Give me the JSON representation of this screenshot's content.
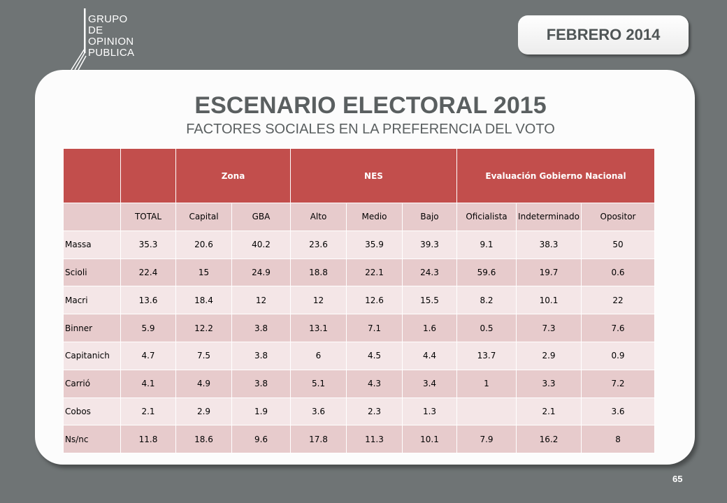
{
  "logo": {
    "lines": [
      "GRUPO",
      "DE",
      "OPINION",
      "PUBLICA"
    ]
  },
  "date": "FEBRERO 2014",
  "title": "ESCENARIO ELECTORAL 2015",
  "subtitle": "FACTORES SOCIALES EN LA PREFERENCIA DEL VOTO",
  "table": {
    "groups": [
      "Zona",
      "NES",
      "Evaluación Gobierno Nacional"
    ],
    "columns": [
      "TOTAL",
      "Capital",
      "GBA",
      "Alto",
      "Medio",
      "Bajo",
      "Oficialista",
      "Indeterminado",
      "Opositor"
    ],
    "rows": [
      {
        "label": "Massa",
        "values": [
          "35.3",
          "20.6",
          "40.2",
          "23.6",
          "35.9",
          "39.3",
          "9.1",
          "38.3",
          "50"
        ]
      },
      {
        "label": "Scioli",
        "values": [
          "22.4",
          "15",
          "24.9",
          "18.8",
          "22.1",
          "24.3",
          "59.6",
          "19.7",
          "0.6"
        ]
      },
      {
        "label": "Macri",
        "values": [
          "13.6",
          "18.4",
          "12",
          "12",
          "12.6",
          "15.5",
          "8.2",
          "10.1",
          "22"
        ]
      },
      {
        "label": "Binner",
        "values": [
          "5.9",
          "12.2",
          "3.8",
          "13.1",
          "7.1",
          "1.6",
          "0.5",
          "7.3",
          "7.6"
        ]
      },
      {
        "label": "Capitanich",
        "values": [
          "4.7",
          "7.5",
          "3.8",
          "6",
          "4.5",
          "4.4",
          "13.7",
          "2.9",
          "0.9"
        ]
      },
      {
        "label": "Carrió",
        "values": [
          "4.1",
          "4.9",
          "3.8",
          "5.1",
          "4.3",
          "3.4",
          "1",
          "3.3",
          "7.2"
        ]
      },
      {
        "label": "Cobos",
        "values": [
          "2.1",
          "2.9",
          "1.9",
          "3.6",
          "2.3",
          "1.3",
          "",
          "2.1",
          "3.6"
        ]
      },
      {
        "label": "Ns/nc",
        "values": [
          "11.8",
          "18.6",
          "9.6",
          "17.8",
          "11.3",
          "10.1",
          "7.9",
          "16.2",
          "8"
        ]
      }
    ]
  },
  "page_number": "65",
  "colors": {
    "header": "#c24e4c",
    "row_dark": "#e7cbcc",
    "row_light": "#f4e6e7",
    "background": "#6f7475"
  }
}
